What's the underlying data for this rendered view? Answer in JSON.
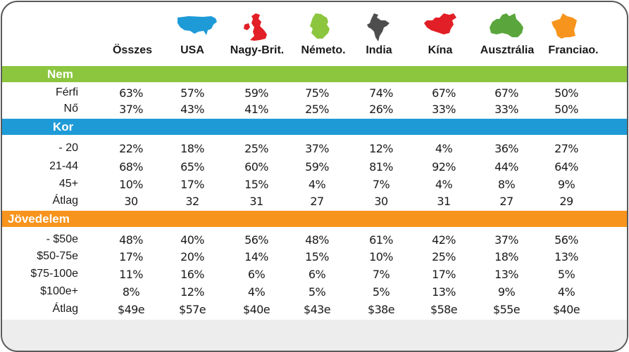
{
  "columns": [
    "Összes",
    "USA",
    "Nagy-Brit.",
    "Németo.",
    "India",
    "Kína",
    "Ausztrália",
    "Franciao."
  ],
  "icons": [
    {
      "name": "usa-map-icon",
      "color": "#1e9bd7"
    },
    {
      "name": "uk-map-icon",
      "color": "#e21f26"
    },
    {
      "name": "germany-map-icon",
      "color": "#8cc63f"
    },
    {
      "name": "india-map-icon",
      "color": "#4d4d4d"
    },
    {
      "name": "china-map-icon",
      "color": "#e21f26"
    },
    {
      "name": "australia-map-icon",
      "color": "#5aa63c"
    },
    {
      "name": "france-map-icon",
      "color": "#f7941d"
    }
  ],
  "sections": [
    {
      "title": "Nem",
      "color": "#8cc63f",
      "rows": [
        {
          "label": "Férfi",
          "values": [
            "63%",
            "57%",
            "59%",
            "75%",
            "74%",
            "67%",
            "67%",
            "50%"
          ]
        },
        {
          "label": "Nő",
          "values": [
            "37%",
            "43%",
            "41%",
            "25%",
            "26%",
            "33%",
            "33%",
            "50%"
          ]
        }
      ]
    },
    {
      "title": "Kor",
      "color": "#1e9bd7",
      "rows": [
        {
          "label": "- 20",
          "values": [
            "22%",
            "18%",
            "25%",
            "37%",
            "12%",
            "4%",
            "36%",
            "27%"
          ]
        },
        {
          "label": "21-44",
          "values": [
            "68%",
            "65%",
            "60%",
            "59%",
            "81%",
            "92%",
            "44%",
            "64%"
          ]
        },
        {
          "label": "45+",
          "values": [
            "10%",
            "17%",
            "15%",
            "4%",
            "7%",
            "4%",
            "8%",
            "9%"
          ]
        },
        {
          "label": "Átlag",
          "values": [
            "30",
            "32",
            "31",
            "27",
            "30",
            "31",
            "27",
            "29"
          ]
        }
      ]
    },
    {
      "title": "Jövedelem",
      "color": "#f7941d",
      "rows": [
        {
          "label": "- $50e",
          "values": [
            "48%",
            "40%",
            "56%",
            "48%",
            "61%",
            "42%",
            "37%",
            "56%"
          ]
        },
        {
          "label": "$50-75e",
          "values": [
            "17%",
            "20%",
            "14%",
            "15%",
            "10%",
            "25%",
            "18%",
            "13%"
          ]
        },
        {
          "label": "$75-100e",
          "values": [
            "11%",
            "16%",
            "6%",
            "6%",
            "7%",
            "17%",
            "13%",
            "5%"
          ]
        },
        {
          "label": "$100e+",
          "values": [
            "8%",
            "12%",
            "4%",
            "5%",
            "5%",
            "13%",
            "9%",
            "4%"
          ]
        },
        {
          "label": "Átlag",
          "values": [
            "$49e",
            "$57e",
            "$40e",
            "$43e",
            "$38e",
            "$58e",
            "$55e",
            "$40e"
          ]
        }
      ]
    }
  ]
}
